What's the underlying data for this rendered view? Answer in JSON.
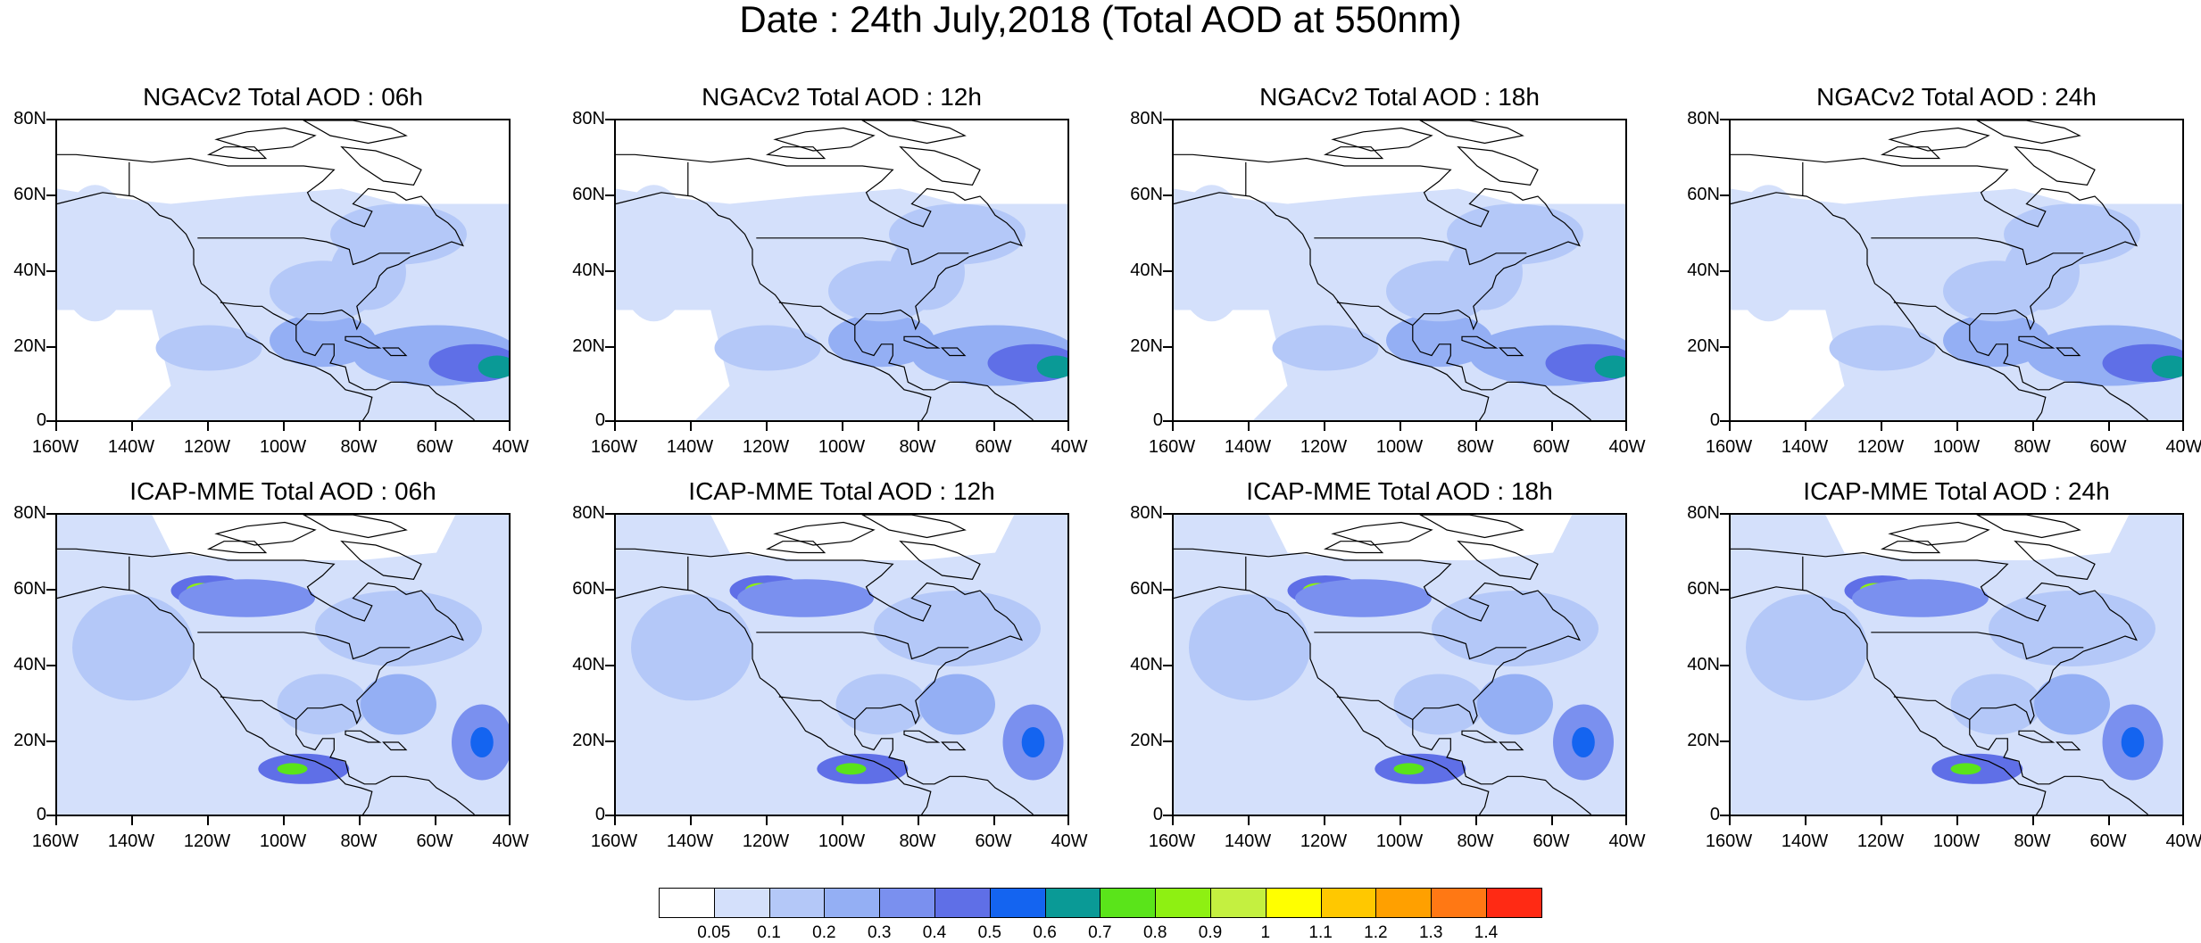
{
  "title": "Date : 24th July,2018 (Total AOD at 550nm)",
  "panels": [
    {
      "title": "NGACv2 Total AOD : 06h",
      "model": "NGACv2",
      "hour": "06h"
    },
    {
      "title": "NGACv2 Total AOD : 12h",
      "model": "NGACv2",
      "hour": "12h"
    },
    {
      "title": "NGACv2 Total AOD : 18h",
      "model": "NGACv2",
      "hour": "18h"
    },
    {
      "title": "NGACv2 Total AOD : 24h",
      "model": "NGACv2",
      "hour": "24h"
    },
    {
      "title": "ICAP-MME Total AOD : 06h",
      "model": "ICAP-MME",
      "hour": "06h"
    },
    {
      "title": "ICAP-MME Total AOD : 12h",
      "model": "ICAP-MME",
      "hour": "12h"
    },
    {
      "title": "ICAP-MME Total AOD : 18h",
      "model": "ICAP-MME",
      "hour": "18h"
    },
    {
      "title": "ICAP-MME Total AOD : 24h",
      "model": "ICAP-MME",
      "hour": "24h"
    }
  ],
  "axes": {
    "lat_labels": [
      "80N",
      "60N",
      "40N",
      "20N",
      "0"
    ],
    "lon_labels": [
      "160W",
      "140W",
      "120W",
      "100W",
      "80W",
      "60W",
      "40W"
    ]
  },
  "colorbar": {
    "colors": [
      "#ffffff",
      "#d4e0fb",
      "#b4c8f8",
      "#94aff4",
      "#7a90ef",
      "#5f6fe7",
      "#1464f0",
      "#0a9a96",
      "#5ae41a",
      "#8ef012",
      "#c4f040",
      "#ffff00",
      "#ffc800",
      "#ffa000",
      "#ff7814",
      "#ff2a14"
    ],
    "labels": [
      "0.05",
      "0.1",
      "0.2",
      "0.3",
      "0.4",
      "0.5",
      "0.6",
      "0.7",
      "0.8",
      "0.9",
      "1",
      "1.1",
      "1.2",
      "1.3",
      "1.4"
    ]
  }
}
